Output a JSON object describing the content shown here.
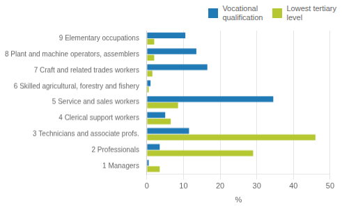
{
  "chart_data": {
    "type": "bar",
    "orientation": "horizontal",
    "categories": [
      "9 Elementary occupations",
      "8 Plant and machine operators, assemblers",
      "7 Craft and related trades workers",
      "6 Skilled agricultural, forestry and fishery",
      "5 Service and sales workers",
      "4 Clerical support workers",
      "3 Technicians and associate profs.",
      "2 Professionals",
      "1 Managers"
    ],
    "series": [
      {
        "name": "Vocational\nqualification",
        "color": "#1f7ab5",
        "values": [
          10.5,
          13.5,
          16.5,
          1.0,
          34.5,
          5.0,
          11.5,
          3.5,
          0.5
        ]
      },
      {
        "name": "Lowest tertiary\nlevel",
        "color": "#b5c832",
        "values": [
          2.0,
          2.0,
          1.5,
          0.5,
          8.5,
          6.5,
          46.0,
          29.0,
          3.5
        ]
      }
    ],
    "xlabel": "%",
    "xlim": [
      0,
      50
    ],
    "xticks": [
      0,
      10,
      20,
      30,
      40,
      50
    ],
    "grid": true,
    "legend": "upper right"
  }
}
